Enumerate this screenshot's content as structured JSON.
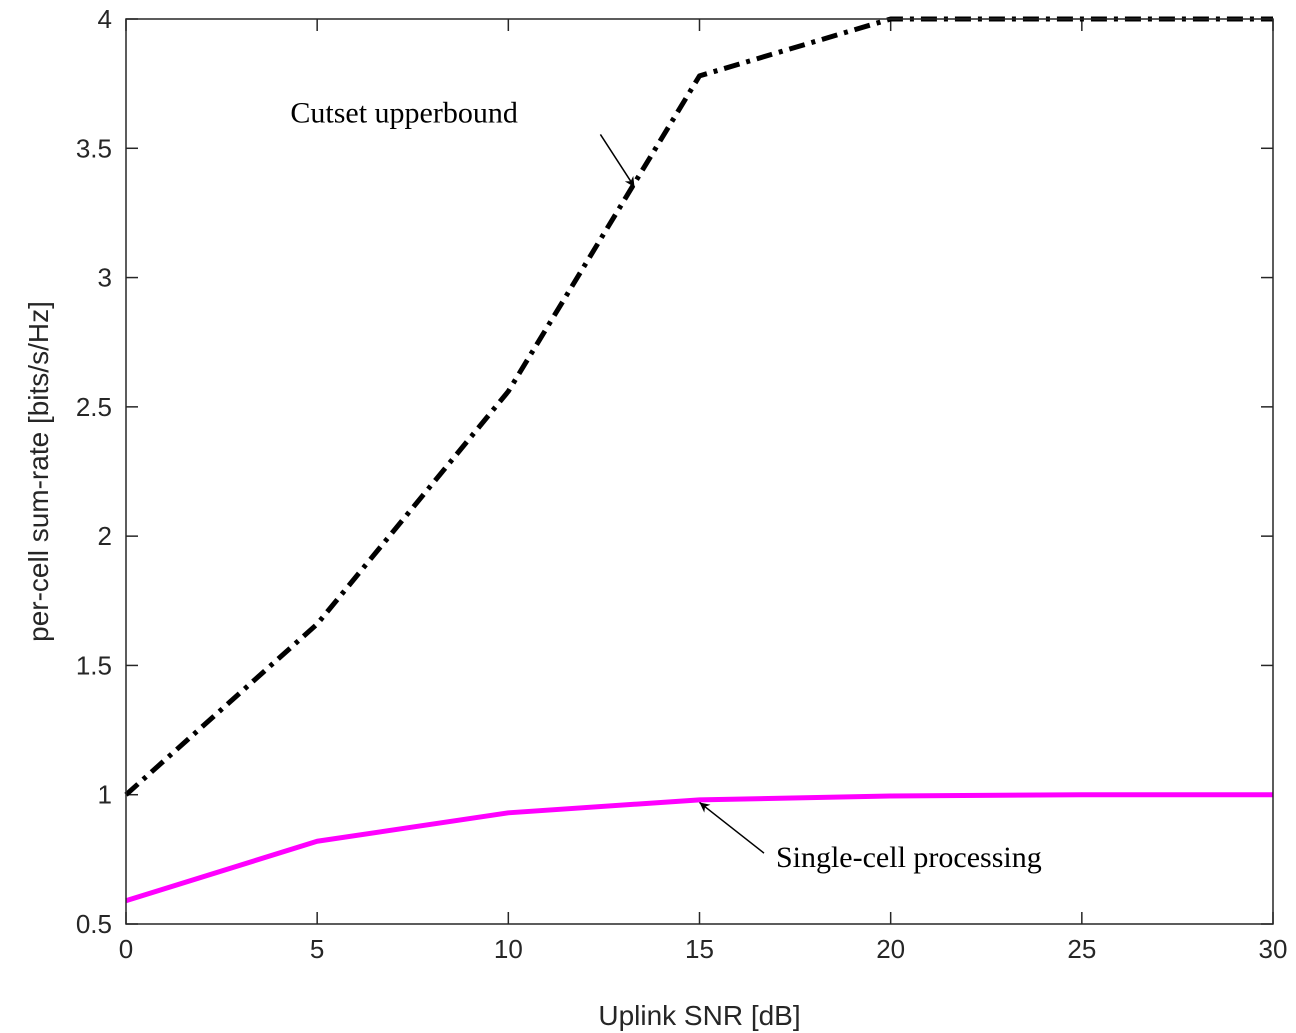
{
  "chart_data": {
    "type": "line",
    "title": "",
    "xlabel": "Uplink SNR [dB]",
    "ylabel": "per-cell sum-rate [bits/s/Hz]",
    "xlim": [
      0,
      30
    ],
    "ylim": [
      0.5,
      4
    ],
    "xticks": [
      0,
      5,
      10,
      15,
      20,
      25,
      30
    ],
    "yticks": [
      0.5,
      1,
      1.5,
      2,
      2.5,
      3,
      3.5,
      4
    ],
    "grid": false,
    "legend": "none",
    "x": [
      0,
      5,
      10,
      15,
      20,
      25,
      30
    ],
    "series": [
      {
        "values": [
          1.0,
          1.66,
          2.56,
          3.78,
          4.0,
          4.0,
          4.0
        ],
        "color": "#000000",
        "style": "dash-dot"
      },
      {
        "values": [
          0.59,
          0.82,
          0.93,
          0.98,
          0.995,
          1.0,
          1.0
        ],
        "color": "#ff00ff",
        "style": "solid"
      }
    ],
    "annotations": [
      {
        "text": "Cutset upperbound",
        "text_at": [
          4.3,
          3.6
        ],
        "arrow_to": [
          13.3,
          3.35
        ]
      },
      {
        "text": "Single-cell processing",
        "text_at": [
          17.0,
          0.72
        ],
        "arrow_to": [
          15.0,
          0.97
        ]
      }
    ]
  }
}
